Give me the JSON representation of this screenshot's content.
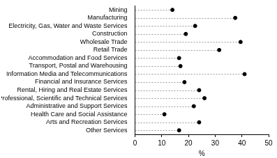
{
  "chart_data": {
    "type": "dot",
    "orientation": "horizontal",
    "categories": [
      "Mining",
      "Manufacturing",
      "Electricity, Gas, Water and Waste Services",
      "Construction",
      "Wholesale Trade",
      "Retail Trade",
      "Accommodation and Food Services",
      "Transport, Postal and Warehousing",
      "Information Media and Telecommunications",
      "Financial and Insurance Services",
      "Rental, Hiring and Real Estate Services",
      "Professional, Scientific and Technical Services",
      "Administrative and Support Services",
      "Health Care and Social Assistance",
      "Arts and Recreation Services",
      "Other Services"
    ],
    "values": [
      14,
      37.5,
      22.5,
      19,
      39.5,
      31.5,
      16.5,
      17,
      41,
      18.5,
      24,
      26,
      22,
      11,
      24,
      16.5
    ],
    "color": "#000000",
    "marker": "circle",
    "line_style": "dashed",
    "xlabel": "%",
    "xlim": [
      0,
      50
    ],
    "xticks": [
      0,
      10,
      20,
      30,
      40,
      50
    ],
    "grid": false
  }
}
